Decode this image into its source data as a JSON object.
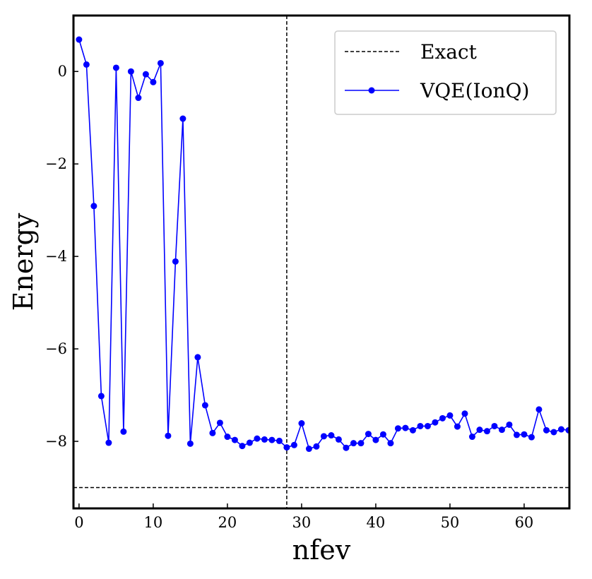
{
  "chart_data": {
    "type": "line",
    "title": "",
    "xlabel": "nfev",
    "ylabel": "Energy",
    "xlim": [
      -0.75,
      66.1
    ],
    "ylim": [
      -9.45,
      1.21
    ],
    "xticks": [
      0,
      10,
      20,
      30,
      40,
      50,
      60
    ],
    "yticks": [
      0,
      -2,
      -4,
      -6,
      -8
    ],
    "ytick_labels": [
      "0",
      "−2",
      "−4",
      "−6",
      "−8"
    ],
    "grid": false,
    "legend_placement": "top-right",
    "series": [
      {
        "name": "VQE(IonQ)",
        "color": "#0000ff",
        "marker": "circle",
        "x": [
          0,
          1,
          2,
          3,
          4,
          5,
          6,
          7,
          8,
          9,
          10,
          11,
          12,
          13,
          14,
          15,
          16,
          17,
          18,
          19,
          20,
          21,
          22,
          23,
          24,
          25,
          26,
          27,
          28,
          29,
          30,
          31,
          32,
          33,
          34,
          35,
          36,
          37,
          38,
          39,
          40,
          41,
          42,
          43,
          44,
          45,
          46,
          47,
          48,
          49,
          50,
          51,
          52,
          53,
          54,
          55,
          56,
          57,
          58,
          59,
          60,
          61,
          62,
          63,
          64,
          65,
          66
        ],
        "y": [
          0.69,
          0.15,
          -2.91,
          -7.02,
          -8.03,
          0.08,
          -7.79,
          0.0,
          -0.57,
          -0.06,
          -0.23,
          0.18,
          -7.88,
          -4.11,
          -1.02,
          -8.05,
          -6.18,
          -7.22,
          -7.82,
          -7.6,
          -7.9,
          -7.97,
          -8.1,
          -8.03,
          -7.94,
          -7.96,
          -7.97,
          -7.99,
          -8.13,
          -8.08,
          -7.61,
          -8.16,
          -8.11,
          -7.89,
          -7.87,
          -7.96,
          -8.14,
          -8.04,
          -8.04,
          -7.84,
          -7.97,
          -7.85,
          -8.04,
          -7.72,
          -7.71,
          -7.76,
          -7.67,
          -7.67,
          -7.59,
          -7.5,
          -7.44,
          -7.68,
          -7.4,
          -7.9,
          -7.75,
          -7.78,
          -7.67,
          -7.75,
          -7.64,
          -7.86,
          -7.85,
          -7.91,
          -7.31,
          -7.76,
          -7.8,
          -7.74,
          -7.76
        ]
      }
    ],
    "reference_lines": [
      {
        "name": "Exact",
        "orientation": "horizontal",
        "value": -9.0,
        "style": "dashed",
        "color": "#000000"
      },
      {
        "orientation": "vertical",
        "value": 28,
        "style": "dashed",
        "color": "#000000"
      }
    ]
  }
}
